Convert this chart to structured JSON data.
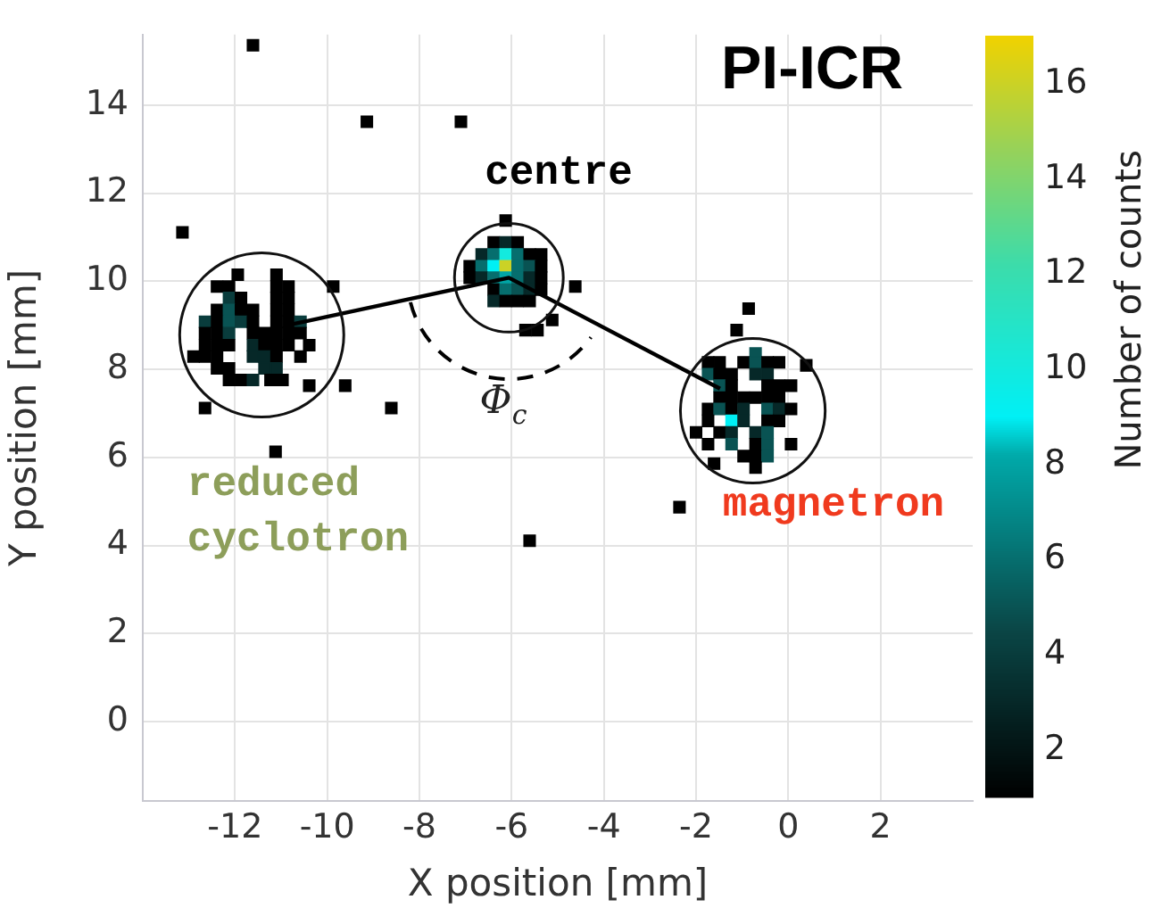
{
  "chart_data": {
    "type": "scatter",
    "xlabel": "X position [mm]",
    "ylabel": "Y position [mm]",
    "clabel": "Number of counts",
    "marker": "square",
    "grid": true,
    "legend": false,
    "xlim": [
      -14,
      4
    ],
    "xticks": [
      -12,
      -10,
      -8,
      -6,
      -4,
      -2,
      0,
      2
    ],
    "ylim": [
      -1.8,
      15.6
    ],
    "yticks": [
      0,
      2,
      4,
      6,
      8,
      10,
      12,
      14
    ],
    "clim": [
      1,
      17
    ],
    "cticks": [
      2,
      4,
      6,
      8,
      10,
      12,
      14,
      16
    ],
    "annotations": [
      "PI-ICR",
      "centre",
      "reduced cyclotron",
      "magnetron",
      "Φ$_{c}$"
    ],
    "series": [
      {
        "x": [
          -11.94,
          -11.1,
          -12.39,
          -12.13,
          -11.1,
          -10.84,
          -12.13,
          -11.87,
          -11.1,
          -10.84,
          -12.39,
          -12.13,
          -11.87,
          -11.61,
          -11.1,
          -10.84,
          -12.65,
          -12.39,
          -12.13,
          -11.87,
          -11.61,
          -11.1,
          -10.84,
          -10.58,
          -12.65,
          -12.39,
          -12.13,
          -11.61,
          -11.36,
          -11.1,
          -10.84,
          -10.58,
          -12.65,
          -12.39,
          -12.13,
          -11.61,
          -11.36,
          -11.1,
          -10.84,
          -10.39,
          -12.9,
          -12.65,
          -12.39,
          -11.61,
          -11.36,
          -11.1,
          -10.58,
          -12.39,
          -12.13,
          -11.36,
          -11.1,
          -12.13,
          -11.87,
          -11.61,
          -11.23,
          -10.97
        ],
        "values": [
          10.15,
          10.15,
          9.88,
          9.88,
          9.88,
          9.88,
          9.62,
          9.62,
          9.62,
          9.62,
          9.35,
          9.35,
          9.35,
          9.35,
          9.35,
          9.35,
          9.08,
          9.08,
          9.08,
          9.08,
          9.08,
          9.08,
          9.08,
          9.08,
          8.82,
          8.82,
          8.82,
          8.82,
          8.82,
          8.82,
          8.82,
          8.82,
          8.55,
          8.55,
          8.55,
          8.55,
          8.55,
          8.55,
          8.55,
          8.55,
          8.29,
          8.29,
          8.29,
          8.29,
          8.29,
          8.29,
          8.29,
          8.02,
          8.02,
          8.02,
          8.02,
          7.76,
          7.76,
          7.76,
          7.76,
          7.76
        ],
        "cvalues": [
          1,
          1,
          1,
          1,
          1,
          1,
          4,
          1,
          1,
          1,
          1,
          5,
          1,
          1,
          1,
          1,
          4,
          1,
          5,
          4,
          1,
          1,
          1,
          4,
          1,
          1,
          4,
          1,
          1,
          1,
          1,
          1,
          1,
          1,
          1,
          3,
          1,
          1,
          1,
          1,
          1,
          1,
          1,
          3,
          3,
          1,
          1,
          1,
          1,
          3,
          3,
          1,
          1,
          3,
          1,
          1
        ],
        "colors": [
          "#000000",
          "#000000",
          "#000000",
          "#000000",
          "#000000",
          "#000000",
          "#093c3c",
          "#000000",
          "#000000",
          "#000000",
          "#000000",
          "#095353",
          "#000000",
          "#000000",
          "#000000",
          "#000000",
          "#093c3c",
          "#000000",
          "#095353",
          "#093c3c",
          "#000000",
          "#000000",
          "#000000",
          "#093c3c",
          "#000000",
          "#000000",
          "#093c3c",
          "#000000",
          "#000000",
          "#000000",
          "#000000",
          "#000000",
          "#000000",
          "#000000",
          "#000000",
          "#062828",
          "#000000",
          "#000000",
          "#000000",
          "#000000",
          "#000000",
          "#000000",
          "#000000",
          "#062828",
          "#062828",
          "#000000",
          "#000000",
          "#000000",
          "#000000",
          "#062828",
          "#062828",
          "#000000",
          "#000000",
          "#062828",
          "#000000",
          "#000000"
        ]
      },
      {
        "x": [
          -6.39,
          -6.13,
          -5.87,
          -6.65,
          -6.39,
          -6.13,
          -5.87,
          -5.61,
          -5.36,
          -6.91,
          -6.65,
          -6.39,
          -6.13,
          -5.87,
          -5.61,
          -5.36,
          -6.91,
          -6.65,
          -6.39,
          -6.13,
          -5.87,
          -5.61,
          -5.36,
          -6.39,
          -6.13,
          -5.87,
          -5.61,
          -5.36,
          -6.39,
          -6.13,
          -5.87,
          -5.61
        ],
        "values": [
          10.88,
          10.88,
          10.88,
          10.61,
          10.61,
          10.61,
          10.61,
          10.61,
          10.61,
          10.34,
          10.34,
          10.34,
          10.34,
          10.34,
          10.34,
          10.34,
          10.08,
          10.08,
          10.08,
          10.08,
          10.08,
          10.08,
          10.08,
          9.81,
          9.81,
          9.81,
          9.81,
          9.81,
          9.55,
          9.55,
          9.55,
          9.55
        ],
        "cvalues": [
          1,
          3,
          1,
          3,
          6,
          10,
          6,
          1,
          1,
          1,
          6,
          9,
          16,
          6,
          5,
          1,
          1,
          3,
          6,
          8,
          6,
          3,
          1,
          1,
          6,
          5,
          3,
          1,
          3,
          1,
          1,
          1
        ],
        "colors": [
          "#000000",
          "#062828",
          "#000000",
          "#062828",
          "#066e6e",
          "#13eade",
          "#066e6e",
          "#000000",
          "#000000",
          "#000000",
          "#066e6e",
          "#00f0f5",
          "#cbd226",
          "#066e6e",
          "#095353",
          "#000000",
          "#000000",
          "#062828",
          "#066e6e",
          "#01a5a5",
          "#066e6e",
          "#062828",
          "#000000",
          "#000000",
          "#066e6e",
          "#095353",
          "#062828",
          "#000000",
          "#062828",
          "#000000",
          "#000000",
          "#000000"
        ]
      },
      {
        "x": [
          -0.71,
          -1.74,
          -1.49,
          -0.97,
          -0.71,
          -0.45,
          -0.2,
          -1.74,
          -1.49,
          -1.23,
          -0.71,
          -0.45,
          -1.49,
          -1.23,
          -0.45,
          -0.2,
          0.06,
          -1.49,
          -1.23,
          -0.97,
          -0.71,
          -0.45,
          -0.2,
          -1.74,
          -1.49,
          -1.23,
          -0.97,
          -0.45,
          -0.2,
          0.06,
          -1.74,
          -1.23,
          -0.97,
          -0.45,
          -0.2,
          -2.0,
          -1.49,
          -1.23,
          -0.71,
          -0.45,
          -1.74,
          -1.23,
          -0.71,
          -0.45,
          0.06,
          -0.97,
          -0.71,
          -0.45,
          -0.71
        ],
        "values": [
          8.36,
          8.16,
          8.16,
          8.16,
          8.16,
          8.16,
          8.16,
          7.89,
          7.89,
          7.89,
          7.89,
          7.89,
          7.63,
          7.63,
          7.63,
          7.63,
          7.63,
          7.36,
          7.36,
          7.36,
          7.36,
          7.36,
          7.36,
          7.1,
          7.1,
          7.1,
          7.1,
          7.1,
          7.1,
          7.1,
          6.83,
          6.83,
          6.83,
          6.83,
          6.83,
          6.57,
          6.57,
          6.57,
          6.57,
          6.57,
          6.3,
          6.3,
          6.3,
          6.3,
          6.3,
          6.03,
          6.03,
          6.03,
          5.77
        ],
        "cvalues": [
          5,
          1,
          1,
          1,
          5,
          1,
          1,
          5,
          1,
          1,
          3,
          3,
          5,
          1,
          1,
          1,
          1,
          1,
          1,
          1,
          1,
          1,
          1,
          1,
          5,
          1,
          3,
          5,
          3,
          1,
          1,
          9,
          3,
          1,
          1,
          1,
          1,
          3,
          3,
          5,
          1,
          5,
          1,
          5,
          1,
          1,
          1,
          5,
          1
        ],
        "colors": [
          "#095353",
          "#000000",
          "#000000",
          "#000000",
          "#095353",
          "#000000",
          "#000000",
          "#095353",
          "#000000",
          "#000000",
          "#062828",
          "#062828",
          "#095353",
          "#000000",
          "#000000",
          "#000000",
          "#000000",
          "#000000",
          "#000000",
          "#000000",
          "#000000",
          "#000000",
          "#000000",
          "#000000",
          "#095353",
          "#000000",
          "#062828",
          "#095353",
          "#062828",
          "#000000",
          "#000000",
          "#00f0f5",
          "#062828",
          "#000000",
          "#000000",
          "#000000",
          "#000000",
          "#062828",
          "#062828",
          "#095353",
          "#000000",
          "#095353",
          "#000000",
          "#095353",
          "#000000",
          "#000000",
          "#000000",
          "#095353",
          "#000000"
        ]
      },
      {
        "x": [
          -11.61,
          -9.14,
          -7.1,
          -13.14,
          -6.13,
          -4.62,
          -5.12,
          -5.7,
          -5.44,
          -0.86,
          -1.12,
          -9.87,
          -9.61,
          -10.39,
          -12.65,
          -8.61,
          -11.12,
          -2.36,
          -5.61,
          -1.61,
          0.39
        ],
        "values": [
          15.36,
          13.62,
          13.62,
          11.11,
          11.38,
          9.88,
          9.12,
          8.89,
          8.89,
          9.38,
          8.89,
          9.88,
          7.63,
          7.63,
          7.12,
          7.12,
          6.13,
          4.87,
          4.11,
          5.86,
          8.09
        ],
        "cvalues": [
          1,
          1,
          1,
          1,
          1,
          1,
          1,
          1,
          1,
          1,
          1,
          1,
          1,
          1,
          1,
          1,
          1,
          1,
          1,
          1,
          1
        ],
        "color": "#000000"
      },
      {
        "type": "line",
        "x": [
          -10.77,
          -6.06,
          -1.48
        ],
        "values": [
          9.02,
          10.08,
          7.56
        ],
        "color": "#000000",
        "marker": "none"
      }
    ]
  }
}
